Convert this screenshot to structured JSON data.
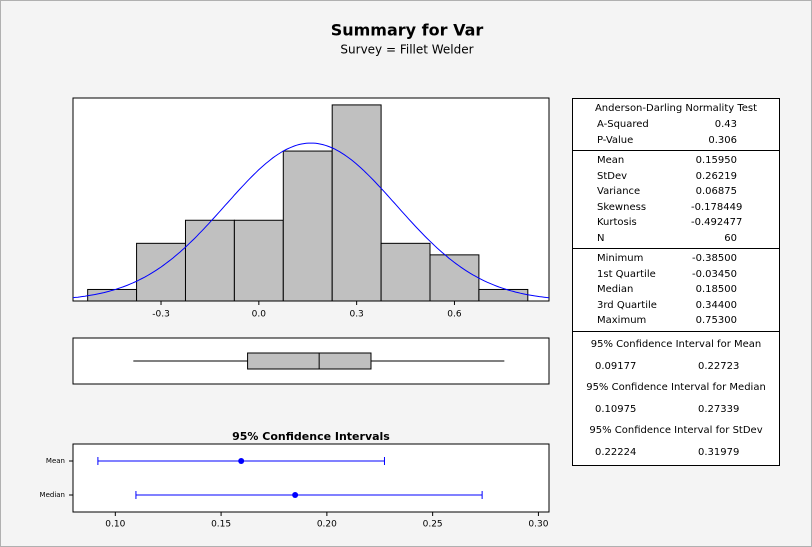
{
  "header": {
    "title": "Summary for Var",
    "subtitle": "Survey = Fillet Welder"
  },
  "chart_data": [
    {
      "type": "histogram",
      "bins": [
        -0.525,
        -0.375,
        -0.225,
        -0.075,
        0.075,
        0.225,
        0.375,
        0.525,
        0.675,
        0.825
      ],
      "counts": [
        1,
        5,
        7,
        7,
        13,
        17,
        5,
        4,
        1
      ],
      "color": "#c0c0c0",
      "curve_color": "#0000ff",
      "normal_fit": {
        "mean": 0.1595,
        "stdev": 0.26219
      },
      "xlim": [
        -0.57,
        0.89
      ],
      "ylim": [
        0,
        17.6
      ],
      "xticks": [
        -0.3,
        {
          "value": 0,
          "label": "0.0"
        },
        0.3,
        0.6
      ]
    },
    {
      "type": "box",
      "min": -0.385,
      "q1": -0.0345,
      "median": 0.185,
      "q3": 0.344,
      "max": 0.753,
      "color": "#c0c0c0",
      "xlim": [
        -0.57,
        0.89
      ]
    },
    {
      "type": "interval",
      "title": "95% Confidence Intervals",
      "categories": [
        "Mean",
        "Median"
      ],
      "values": [
        0.1595,
        0.185
      ],
      "lower": [
        0.09177,
        0.10975
      ],
      "upper": [
        0.22723,
        0.27339
      ],
      "color": "#0000ff",
      "xlim": [
        0.08,
        0.305
      ],
      "xticks": [
        {
          "value": 0.1,
          "label": "0.10"
        },
        {
          "value": 0.15,
          "label": "0.15"
        },
        {
          "value": 0.2,
          "label": "0.20"
        },
        {
          "value": 0.25,
          "label": "0.25"
        },
        {
          "value": 0.3,
          "label": "0.30"
        }
      ]
    }
  ],
  "stats": {
    "normality": {
      "title": "Anderson-Darling Normality Test",
      "rows": [
        [
          "A-Squared",
          "0.43"
        ],
        [
          "P-Value",
          "0.306"
        ]
      ]
    },
    "descriptive": {
      "rows": [
        [
          "Mean",
          "0.15950"
        ],
        [
          "StDev",
          "0.26219"
        ],
        [
          "Variance",
          "0.06875"
        ],
        [
          "Skewness",
          "-0.178449"
        ],
        [
          "Kurtosis",
          "-0.492477"
        ],
        [
          "N",
          "60"
        ]
      ]
    },
    "quartiles": {
      "rows": [
        [
          "Minimum",
          "-0.38500"
        ],
        [
          "1st Quartile",
          "-0.03450"
        ],
        [
          "Median",
          "0.18500"
        ],
        [
          "3rd Quartile",
          "0.34400"
        ],
        [
          "Maximum",
          "0.75300"
        ]
      ]
    },
    "intervals": [
      {
        "title": "95% Confidence Interval for Mean",
        "values": [
          "0.09177",
          "0.22723"
        ]
      },
      {
        "title": "95% Confidence Interval for Median",
        "values": [
          "0.10975",
          "0.27339"
        ]
      },
      {
        "title": "95% Confidence Interval for StDev",
        "values": [
          "0.22224",
          "0.31979"
        ]
      }
    ]
  }
}
